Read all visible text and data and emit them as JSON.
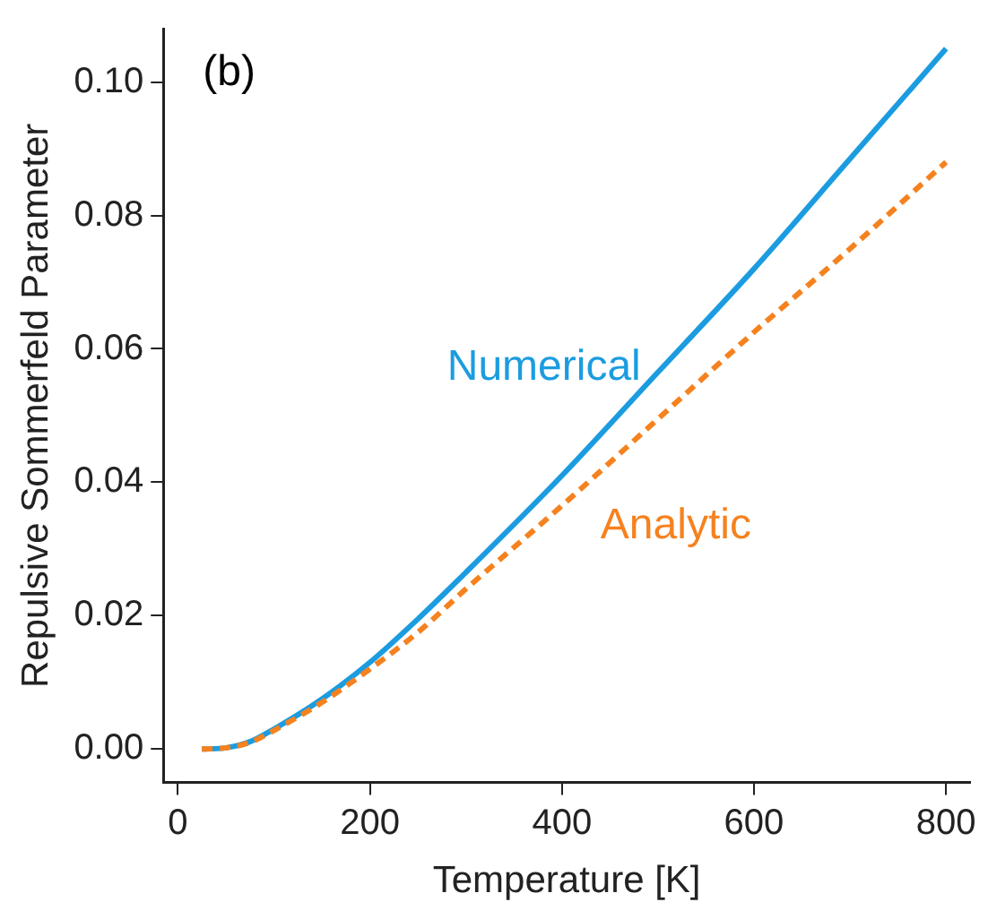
{
  "chart_data": {
    "type": "line",
    "xlabel": "Temperature [K]",
    "ylabel": "Repulsive Sommerfeld Parameter",
    "x": [
      25,
      50,
      75,
      100,
      150,
      200,
      250,
      300,
      400,
      500,
      600,
      700,
      800
    ],
    "series": [
      {
        "name": "Numerical",
        "color": "#1c9ce0",
        "line_style": "solid",
        "values": [
          0,
          0.0002,
          0.0011,
          0.003,
          0.0075,
          0.013,
          0.0195,
          0.0265,
          0.041,
          0.0565,
          0.072,
          0.0885,
          0.105
        ]
      },
      {
        "name": "Analytic",
        "color": "#f5821f",
        "line_style": "dashed",
        "values": [
          0,
          0.0002,
          0.001,
          0.0028,
          0.007,
          0.012,
          0.0175,
          0.024,
          0.0365,
          0.0495,
          0.0625,
          0.075,
          0.088
        ]
      }
    ],
    "xlim": [
      -15,
      825
    ],
    "ylim": [
      -0.005,
      0.108
    ],
    "xticks": [
      0,
      200,
      400,
      600,
      800
    ],
    "yticks": [
      {
        "value": 0,
        "label": "0.00"
      },
      {
        "value": 0.02,
        "label": "0.02"
      },
      {
        "value": 0.04,
        "label": "0.04"
      },
      {
        "value": 0.06,
        "label": "0.06"
      },
      {
        "value": 0.08,
        "label": "0.08"
      },
      {
        "value": 0.1,
        "label": "0.10"
      }
    ],
    "annotations": [
      "(b)"
    ],
    "grid": false,
    "legend": false,
    "marker": "none"
  }
}
